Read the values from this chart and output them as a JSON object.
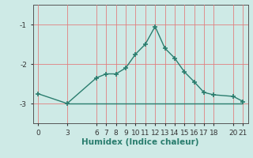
{
  "x": [
    0,
    3,
    6,
    7,
    8,
    9,
    10,
    11,
    12,
    13,
    14,
    15,
    16,
    17,
    18,
    20,
    21
  ],
  "y": [
    -2.75,
    -3.0,
    -2.35,
    -2.25,
    -2.25,
    -2.1,
    -1.75,
    -1.5,
    -1.05,
    -1.6,
    -1.85,
    -2.2,
    -2.45,
    -2.72,
    -2.78,
    -2.82,
    -2.95
  ],
  "hline_y": -3.0,
  "hline_x_start": 3,
  "hline_x_end": 21,
  "xticks": [
    0,
    3,
    6,
    7,
    8,
    9,
    10,
    11,
    12,
    13,
    14,
    15,
    16,
    17,
    18,
    20,
    21
  ],
  "yticks": [
    -3,
    -2,
    -1
  ],
  "ylim": [
    -3.5,
    -0.5
  ],
  "xlim": [
    -0.5,
    21.5
  ],
  "xlabel": "Humidex (Indice chaleur)",
  "line_color": "#2a7d6e",
  "bg_color": "#ceeae6",
  "grid_color": "#b8d8d4",
  "hline_color": "#2a7d6e",
  "marker": "+",
  "markersize": 4,
  "markeredgewidth": 1.2,
  "linewidth": 1.0,
  "xlabel_fontsize": 7.5,
  "tick_fontsize": 6.5
}
